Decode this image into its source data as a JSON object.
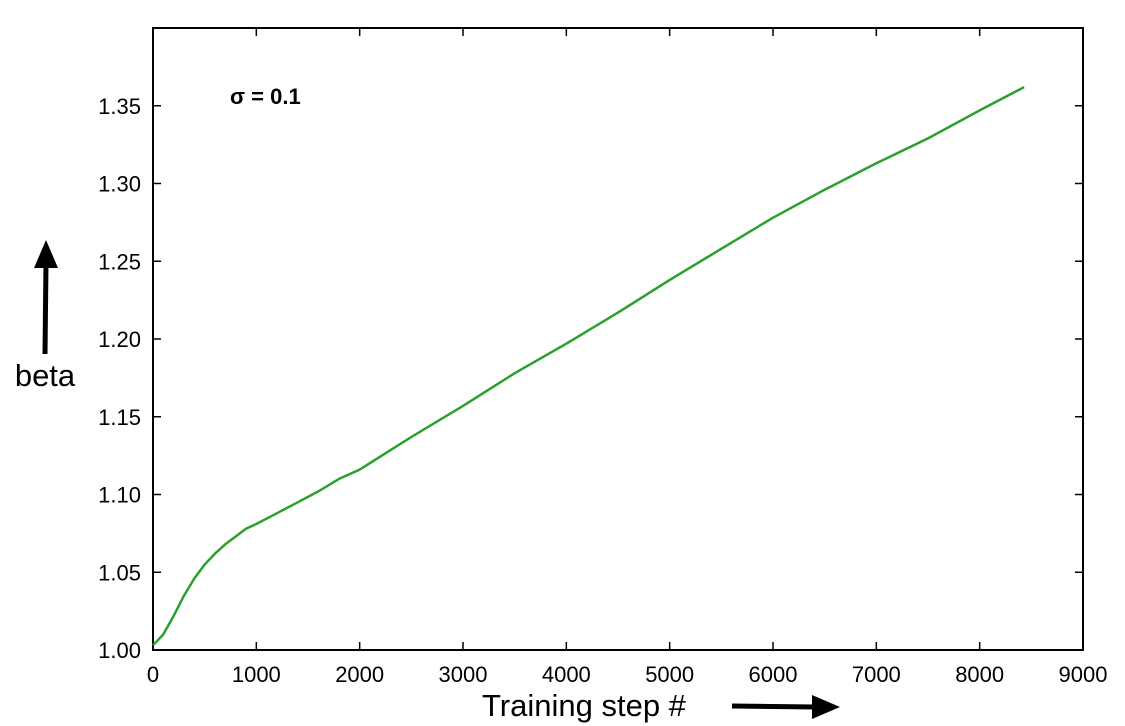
{
  "chart_data": {
    "type": "line",
    "xlabel": "Training step #",
    "ylabel": "beta",
    "annotation": "σ = 0.1",
    "xlim": [
      0,
      9000
    ],
    "ylim": [
      1.0,
      1.4
    ],
    "xticks": [
      0,
      1000,
      2000,
      3000,
      4000,
      5000,
      6000,
      7000,
      8000,
      9000
    ],
    "xtick_labels": [
      "0",
      "1000",
      "2000",
      "3000",
      "4000",
      "5000",
      "6000",
      "7000",
      "8000",
      "9000"
    ],
    "yticks": [
      1.0,
      1.05,
      1.1,
      1.15,
      1.2,
      1.25,
      1.3,
      1.35
    ],
    "ytick_labels": [
      "1.00",
      "1.05",
      "1.10",
      "1.15",
      "1.20",
      "1.25",
      "1.30",
      "1.35"
    ],
    "grid": false,
    "line_color": "#2ca02c",
    "series": [
      {
        "x": [
          0,
          100,
          200,
          300,
          400,
          500,
          600,
          700,
          800,
          900,
          1000,
          1200,
          1400,
          1600,
          1800,
          2000,
          2500,
          3000,
          3500,
          4000,
          4500,
          5000,
          5500,
          6000,
          6500,
          7000,
          7500,
          8000,
          8430
        ],
        "y": [
          1.003,
          1.01,
          1.022,
          1.035,
          1.046,
          1.055,
          1.062,
          1.068,
          1.073,
          1.078,
          1.081,
          1.088,
          1.095,
          1.102,
          1.11,
          1.116,
          1.137,
          1.157,
          1.178,
          1.197,
          1.217,
          1.238,
          1.258,
          1.278,
          1.296,
          1.313,
          1.329,
          1.347,
          1.362
        ]
      }
    ]
  }
}
